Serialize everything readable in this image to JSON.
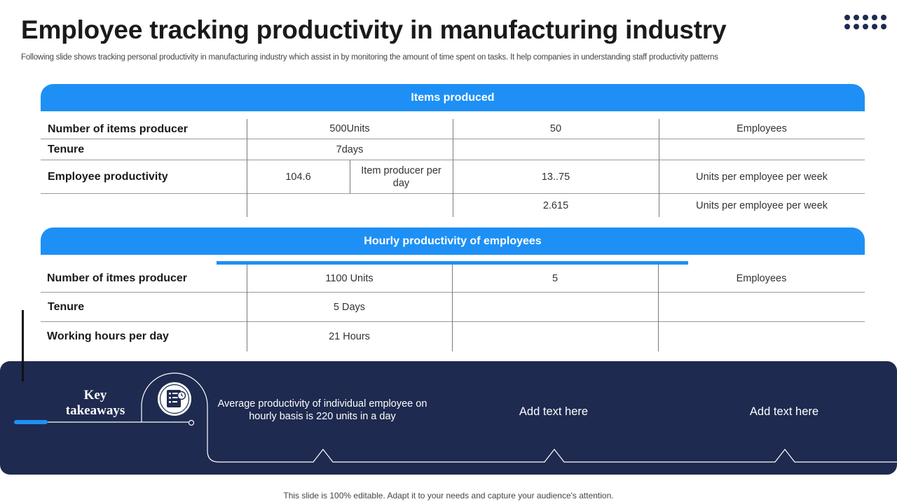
{
  "title": "Employee tracking productivity in manufacturing industry",
  "subtitle": "Following slide shows tracking personal productivity in manufacturing industry which assist in by monitoring the amount of time spent on tasks. It help companies in understanding staff productivity patterns",
  "items_produced": {
    "header": "Items produced",
    "rows": [
      {
        "label": "Number of items producer",
        "c1": "500Units",
        "c2": "50",
        "c3": "Employees"
      },
      {
        "label": "Tenure",
        "c1": "7days",
        "c2": "",
        "c3": ""
      },
      {
        "label": "Employee productivity",
        "c1a": "104.6",
        "c1b": "Item producer per day",
        "c2": "13..75",
        "c3": "Units per employee per week"
      },
      {
        "label": "",
        "c1": "",
        "c2": "2.615",
        "c3": "Units per employee per week"
      }
    ]
  },
  "hourly": {
    "header": "Hourly productivity of employees",
    "rows": [
      {
        "label": "Number of itmes producer",
        "c1": "1100 Units",
        "c2": "5",
        "c3": "Employees"
      },
      {
        "label": "Tenure",
        "c1": "5 Days",
        "c2": "",
        "c3": ""
      },
      {
        "label": "Working hours per day",
        "c1": "21 Hours",
        "c2": "",
        "c3": ""
      }
    ]
  },
  "takeaways": {
    "heading_line1": "Key",
    "heading_line2": "takeaways",
    "items": [
      "Average productivity of individual employee on hourly basis is 220 units in a day",
      "Add text here",
      "Add text here"
    ],
    "icon": "document-checklist-icon"
  },
  "footer": "This slide is 100% editable. Adapt it to your needs and capture your audience's attention.",
  "colors": {
    "accent": "#1e90f5",
    "navy": "#1e2a4f"
  }
}
